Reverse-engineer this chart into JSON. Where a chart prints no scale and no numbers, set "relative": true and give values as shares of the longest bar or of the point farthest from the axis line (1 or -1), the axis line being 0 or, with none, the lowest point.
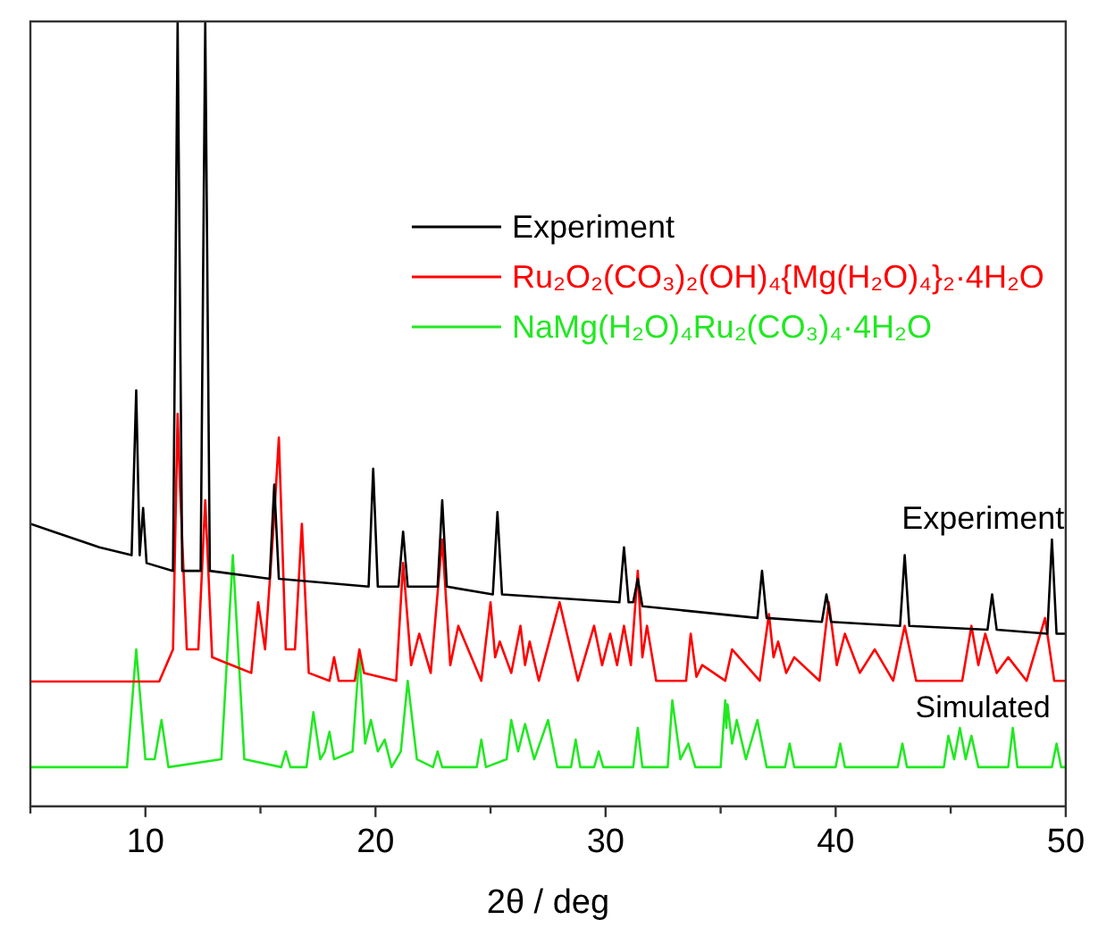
{
  "chart_data": {
    "type": "line",
    "relative": true,
    "xlabel": "2θ / deg",
    "xlim": [
      5,
      50
    ],
    "xticks": [
      {
        "value": 5,
        "label": null
      },
      10,
      {
        "value": 15,
        "label": null
      },
      20,
      {
        "value": 25,
        "label": null
      },
      30,
      {
        "value": 35,
        "label": null
      },
      40,
      {
        "value": 45,
        "label": null
      },
      50
    ],
    "grid": false,
    "legend": "top right",
    "marker": "none",
    "line_style": "solid",
    "tick_labels": "x",
    "annotations": [
      "Experiment",
      "Simulated"
    ],
    "series": [
      {
        "name": "Experiment",
        "color": "#000000",
        "x": [
          5,
          6,
          7,
          8,
          9.4,
          9.6,
          9.75,
          9.9,
          10.05,
          11.2,
          11.4,
          11.6,
          12.4,
          12.6,
          12.8,
          15.4,
          15.6,
          15.8,
          19.7,
          19.9,
          20.1,
          21.0,
          21.2,
          21.4,
          22.7,
          22.9,
          23.1,
          25.1,
          25.3,
          25.5,
          30.6,
          30.8,
          31.0,
          31.2,
          31.4,
          31.6,
          36.6,
          36.8,
          37.0,
          39.4,
          39.6,
          39.8,
          42.8,
          43.0,
          43.2,
          46.6,
          46.8,
          47.0,
          49.2,
          49.4,
          49.6,
          50
        ],
        "values": [
          0.36,
          0.35,
          0.34,
          0.33,
          0.32,
          0.53,
          0.32,
          0.38,
          0.31,
          0.3,
          1,
          0.3,
          0.3,
          1,
          0.3,
          0.29,
          0.41,
          0.29,
          0.28,
          0.43,
          0.28,
          0.28,
          0.35,
          0.28,
          0.28,
          0.39,
          0.28,
          0.27,
          0.375,
          0.27,
          0.26,
          0.33,
          0.26,
          0.26,
          0.29,
          0.255,
          0.24,
          0.3,
          0.24,
          0.235,
          0.27,
          0.235,
          0.23,
          0.32,
          0.23,
          0.225,
          0.27,
          0.225,
          0.22,
          0.34,
          0.22,
          0.22
        ]
      },
      {
        "name": "Ru₂O₂(CO₃)₂(OH)₄{Mg(H₂O)₄}₂·4H₂O",
        "color": "#ff0000",
        "x": [
          5,
          10.6,
          11.2,
          11.4,
          11.5,
          11.8,
          12.3,
          12.6,
          12.9,
          14.6,
          14.9,
          15.2,
          15.6,
          15.8,
          16.1,
          16.5,
          16.8,
          17.1,
          18.0,
          18.2,
          18.4,
          19.1,
          19.3,
          19.5,
          20.9,
          21.2,
          21.55,
          21.9,
          22.4,
          22.9,
          23.25,
          23.6,
          24.6,
          25.0,
          25.2,
          25.4,
          25.9,
          26.3,
          26.5,
          26.7,
          27.1,
          28.0,
          28.8,
          29.5,
          29.85,
          30.2,
          30.5,
          30.8,
          31.1,
          31.4,
          31.6,
          31.8,
          32.2,
          33.5,
          33.7,
          33.95,
          34.2,
          35.2,
          35.5,
          36.7,
          37.1,
          37.3,
          37.5,
          37.85,
          38.2,
          39.3,
          39.7,
          40.05,
          40.4,
          41.05,
          41.7,
          42.5,
          43.0,
          43.5,
          45.5,
          45.9,
          46.2,
          46.5,
          47.0,
          47.5,
          48.3,
          49.1,
          49.5,
          50
        ],
        "values": [
          0.159,
          0.159,
          0.2,
          0.5,
          0.41,
          0.2,
          0.2,
          0.39,
          0.19,
          0.17,
          0.26,
          0.2,
          0.37,
          0.47,
          0.2,
          0.2,
          0.36,
          0.17,
          0.16,
          0.19,
          0.16,
          0.16,
          0.2,
          0.17,
          0.16,
          0.31,
          0.18,
          0.22,
          0.17,
          0.34,
          0.18,
          0.23,
          0.16,
          0.26,
          0.19,
          0.21,
          0.17,
          0.23,
          0.18,
          0.21,
          0.16,
          0.26,
          0.16,
          0.23,
          0.18,
          0.22,
          0.18,
          0.23,
          0.18,
          0.3,
          0.19,
          0.23,
          0.16,
          0.16,
          0.22,
          0.165,
          0.18,
          0.16,
          0.2,
          0.16,
          0.245,
          0.19,
          0.21,
          0.17,
          0.19,
          0.16,
          0.26,
          0.18,
          0.22,
          0.17,
          0.2,
          0.16,
          0.23,
          0.16,
          0.16,
          0.23,
          0.18,
          0.22,
          0.17,
          0.19,
          0.16,
          0.24,
          0.16,
          0.16
        ]
      },
      {
        "name": "NaMg(H₂O)₄Ru₂(CO₃)₄·4H₂O",
        "color": "#22e822",
        "x": [
          5,
          9.2,
          9.6,
          10.0,
          10.4,
          10.7,
          11.0,
          13.3,
          13.8,
          14.3,
          15.9,
          16.1,
          16.3,
          17.0,
          17.3,
          17.6,
          17.8,
          18.0,
          18.2,
          19.0,
          19.3,
          19.55,
          19.8,
          20.1,
          20.4,
          20.7,
          21.1,
          21.4,
          21.8,
          22.5,
          22.7,
          22.9,
          24.4,
          24.6,
          24.8,
          25.7,
          25.9,
          26.2,
          26.5,
          26.9,
          27.5,
          27.9,
          28.5,
          28.7,
          28.9,
          29.5,
          29.7,
          29.9,
          31.2,
          31.4,
          31.6,
          32.7,
          32.9,
          33.25,
          33.6,
          33.9,
          35.0,
          35.2,
          35.25,
          35.3,
          35.5,
          35.7,
          36.1,
          36.6,
          37.0,
          37.8,
          38.0,
          38.2,
          40.0,
          40.2,
          40.4,
          42.7,
          42.9,
          43.1,
          44.7,
          44.9,
          45.15,
          45.4,
          45.65,
          45.9,
          46.2,
          47.5,
          47.7,
          47.9,
          49.4,
          49.6,
          49.8,
          50
        ],
        "values": [
          0.05,
          0.05,
          0.2,
          0.06,
          0.06,
          0.11,
          0.05,
          0.06,
          0.32,
          0.06,
          0.05,
          0.07,
          0.05,
          0.05,
          0.12,
          0.06,
          0.07,
          0.095,
          0.06,
          0.07,
          0.195,
          0.08,
          0.11,
          0.07,
          0.085,
          0.05,
          0.07,
          0.16,
          0.06,
          0.05,
          0.07,
          0.05,
          0.05,
          0.085,
          0.05,
          0.06,
          0.11,
          0.07,
          0.105,
          0.06,
          0.11,
          0.05,
          0.05,
          0.085,
          0.05,
          0.05,
          0.07,
          0.05,
          0.05,
          0.1,
          0.05,
          0.05,
          0.135,
          0.06,
          0.08,
          0.05,
          0.05,
          0.135,
          0.1,
          0.13,
          0.08,
          0.11,
          0.06,
          0.11,
          0.05,
          0.05,
          0.08,
          0.05,
          0.05,
          0.08,
          0.05,
          0.05,
          0.08,
          0.05,
          0.05,
          0.09,
          0.06,
          0.1,
          0.06,
          0.09,
          0.05,
          0.05,
          0.1,
          0.05,
          0.05,
          0.08,
          0.05,
          0.05
        ]
      }
    ]
  }
}
